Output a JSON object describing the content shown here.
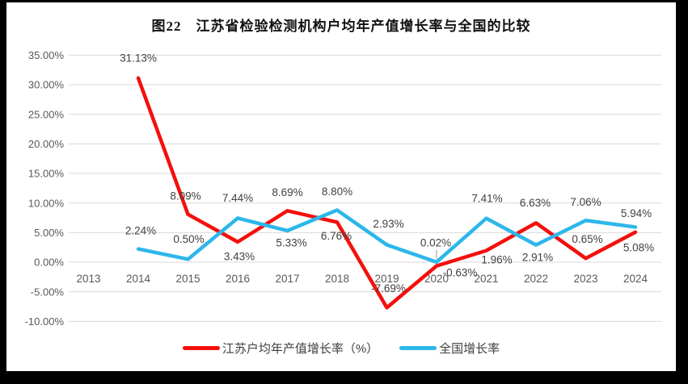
{
  "title": "图22　江苏省检验检测机构户均年产值增长率与全国的比较",
  "chart_data": {
    "type": "line",
    "title": "图22　江苏省检验检测机构户均年产值增长率与全国的比较",
    "categories": [
      "2013",
      "2014",
      "2015",
      "2016",
      "2017",
      "2018",
      "2019",
      "2020",
      "2021",
      "2022",
      "2023",
      "2024"
    ],
    "series": [
      {
        "name": "江苏户均年产值增长率（%）",
        "color": "#f3100d",
        "values": [
          null,
          31.13,
          8.09,
          3.43,
          8.69,
          6.76,
          -7.69,
          -0.63,
          1.96,
          6.63,
          0.65,
          5.08
        ],
        "data_labels": [
          "",
          "31.13%",
          "8.09%",
          "3.43%",
          "8.69%",
          "6.76%",
          "-7.69%",
          "-0.63%",
          "1.96%",
          "6.63%",
          "0.65%",
          "5.08%"
        ],
        "label_offsets": [
          [
            0,
            0
          ],
          [
            0,
            -25
          ],
          [
            -3,
            -23
          ],
          [
            2,
            18
          ],
          [
            0,
            -23
          ],
          [
            -1,
            17
          ],
          [
            2,
            -24
          ],
          [
            29,
            8
          ],
          [
            13,
            11
          ],
          [
            -1,
            -25
          ],
          [
            2,
            -24
          ],
          [
            4,
            19
          ]
        ]
      },
      {
        "name": "全国增长率",
        "color": "#2cb7ea",
        "values": [
          null,
          2.24,
          0.5,
          7.44,
          5.33,
          8.8,
          2.93,
          0.02,
          7.41,
          2.91,
          7.06,
          5.94
        ],
        "data_labels": [
          "",
          "2.24%",
          "0.50%",
          "7.44%",
          "5.33%",
          "8.80%",
          "2.93%",
          "0.02%",
          "7.41%",
          "2.91%",
          "7.06%",
          "5.94%"
        ],
        "label_offsets": [
          [
            0,
            0
          ],
          [
            3,
            -23
          ],
          [
            1,
            -25
          ],
          [
            0,
            -25
          ],
          [
            5,
            15
          ],
          [
            0,
            -23
          ],
          [
            2,
            -26
          ],
          [
            -1,
            -24,
            1
          ],
          [
            1,
            -25
          ],
          [
            2,
            15
          ],
          [
            0,
            -23
          ],
          [
            1,
            -17
          ]
        ]
      }
    ],
    "y_axis": {
      "min": -10,
      "max": 35,
      "step": 5,
      "tick_labels": [
        "35.00%",
        "30.00%",
        "25.00%",
        "20.00%",
        "15.00%",
        "10.00%",
        "5.00%",
        "0.00%",
        "-5.00%",
        "-10.00%"
      ]
    },
    "grid": true,
    "legend_position": "bottom",
    "styles": {
      "grid_color": "#d9d9d9",
      "axis_text_color": "#595959",
      "data_label_color": "#404040",
      "leader_line_color": "#a6a6a6"
    }
  },
  "legend": {
    "items": [
      {
        "label": "江苏户均年产值增长率（%）",
        "color": "#f3100d"
      },
      {
        "label": "全国增长率",
        "color": "#2cb7ea"
      }
    ]
  }
}
